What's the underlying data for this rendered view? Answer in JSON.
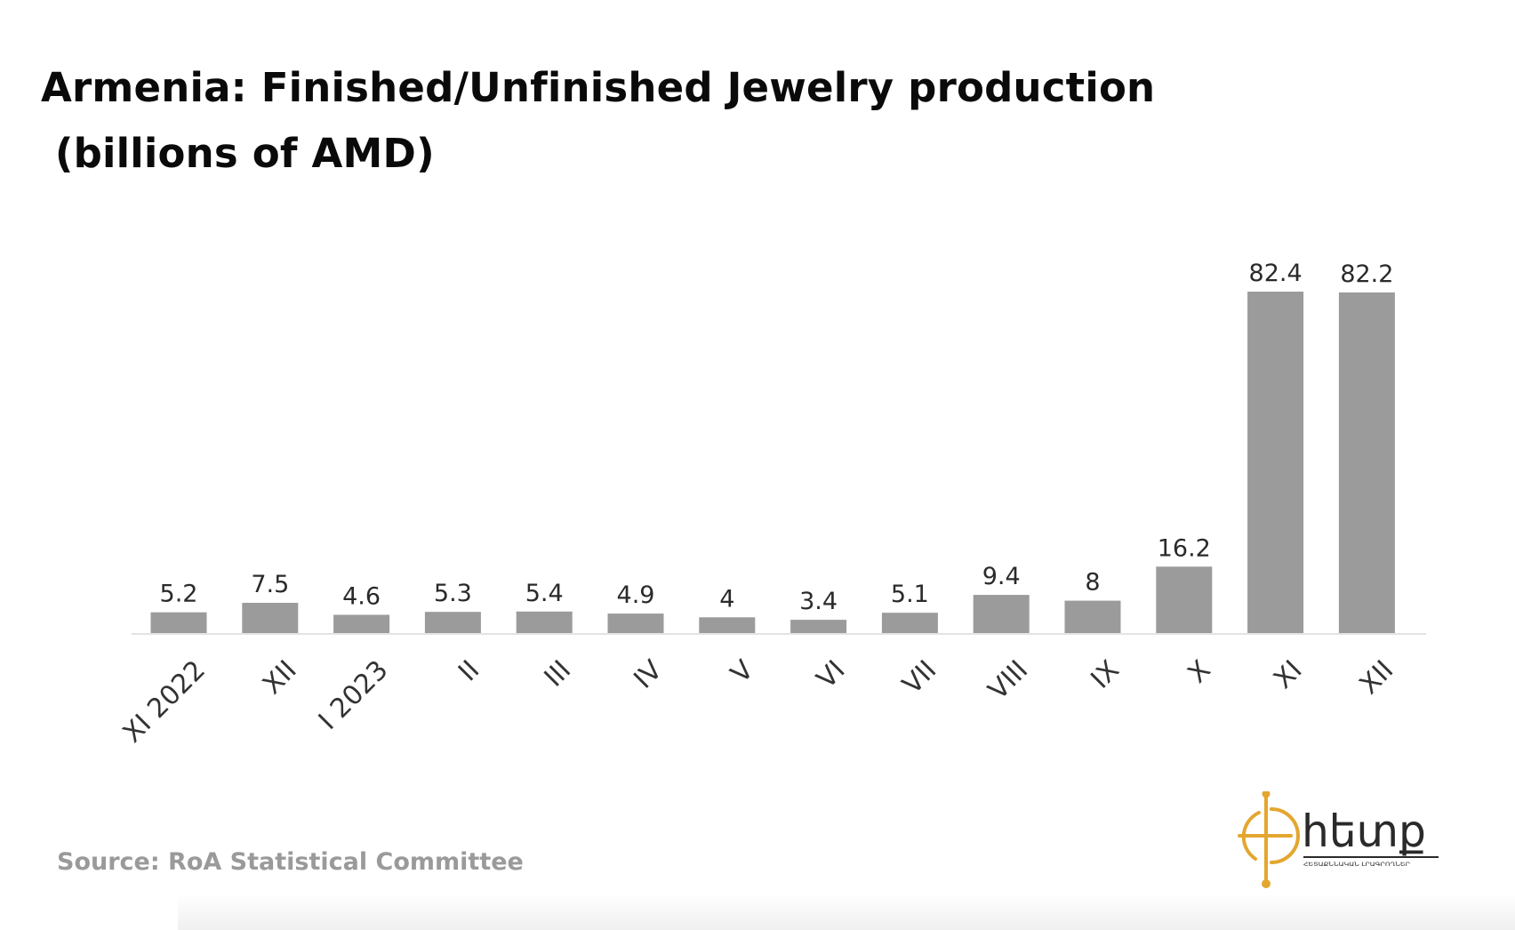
{
  "chart_data": {
    "type": "bar",
    "title": "Armenia: Finished/Unfinished Jewelry production",
    "subtitle": " (billions of AMD)",
    "categories": [
      "XI 2022",
      "XII",
      "I 2023",
      "II",
      "III",
      "IV",
      "V",
      "VI",
      "VII",
      "VIII",
      "IX",
      "X",
      "XI",
      "XII"
    ],
    "values": [
      5.2,
      7.5,
      4.6,
      5.3,
      5.4,
      4.9,
      4,
      3.4,
      5.1,
      9.4,
      8,
      16.2,
      82.4,
      82.2
    ],
    "value_labels": [
      "5.2",
      "7.5",
      "4.6",
      "5.3",
      "5.4",
      "4.9",
      "4",
      "3.4",
      "5.1",
      "9.4",
      "8",
      "16.2",
      "82.4",
      "82.2"
    ],
    "ylim": [
      0,
      82.4
    ],
    "xlabel": "",
    "ylabel": "",
    "grid": false,
    "legend": "none",
    "bar_color": "#9b9b9b",
    "baseline_color": "#e3e3e3"
  },
  "source": "Source: RoA Statistical Committee",
  "logo": {
    "icon": "compass-crosshair-logo-icon",
    "accent_color": "#e3a72f",
    "text": "hետք",
    "tagline": "ՀԵՏԱՔՆՆԱԿԱՆ ԼՐԱԳՐՈՂՆԵՐ"
  }
}
